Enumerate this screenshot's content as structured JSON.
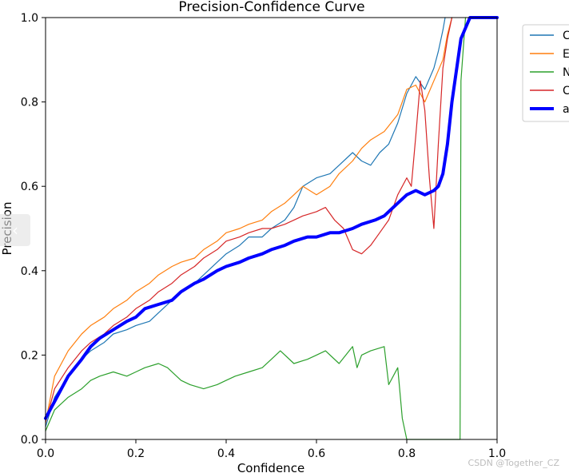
{
  "chart_data": {
    "type": "line",
    "title": "Precision-Confidence Curve",
    "xlabel": "Confidence",
    "ylabel": "Precision",
    "xlim": [
      0.0,
      1.0
    ],
    "ylim": [
      0.0,
      1.0
    ],
    "xticks": [
      "0.0",
      "0.2",
      "0.4",
      "0.6",
      "0.8",
      "1.0"
    ],
    "yticks": [
      "0.0",
      "0.2",
      "0.4",
      "0.6",
      "0.8",
      "1.0"
    ],
    "grid": false,
    "legend_position": "outside-top-right",
    "series": [
      {
        "name": "C",
        "color": "#1f77b4",
        "width": 1.2,
        "x": [
          0.0,
          0.02,
          0.05,
          0.08,
          0.1,
          0.13,
          0.15,
          0.18,
          0.2,
          0.23,
          0.25,
          0.28,
          0.3,
          0.33,
          0.35,
          0.38,
          0.4,
          0.43,
          0.45,
          0.48,
          0.5,
          0.53,
          0.55,
          0.57,
          0.6,
          0.63,
          0.65,
          0.68,
          0.7,
          0.72,
          0.74,
          0.76,
          0.78,
          0.8,
          0.82,
          0.84,
          0.86,
          0.87,
          0.88,
          0.885
        ],
        "y": [
          0.03,
          0.1,
          0.15,
          0.19,
          0.21,
          0.23,
          0.25,
          0.26,
          0.27,
          0.28,
          0.3,
          0.33,
          0.35,
          0.37,
          0.39,
          0.42,
          0.44,
          0.46,
          0.48,
          0.48,
          0.5,
          0.52,
          0.55,
          0.6,
          0.62,
          0.63,
          0.65,
          0.68,
          0.66,
          0.65,
          0.68,
          0.7,
          0.75,
          0.82,
          0.86,
          0.83,
          0.88,
          0.92,
          0.97,
          1.0
        ]
      },
      {
        "name": "E",
        "color": "#ff7f0e",
        "width": 1.2,
        "x": [
          0.0,
          0.02,
          0.05,
          0.08,
          0.1,
          0.13,
          0.15,
          0.18,
          0.2,
          0.23,
          0.25,
          0.28,
          0.3,
          0.33,
          0.35,
          0.38,
          0.4,
          0.43,
          0.45,
          0.48,
          0.5,
          0.53,
          0.55,
          0.57,
          0.6,
          0.63,
          0.65,
          0.68,
          0.7,
          0.72,
          0.75,
          0.78,
          0.8,
          0.82,
          0.84,
          0.86,
          0.88,
          0.89,
          0.9
        ],
        "y": [
          0.04,
          0.15,
          0.21,
          0.25,
          0.27,
          0.29,
          0.31,
          0.33,
          0.35,
          0.37,
          0.39,
          0.41,
          0.42,
          0.43,
          0.45,
          0.47,
          0.49,
          0.5,
          0.51,
          0.52,
          0.54,
          0.56,
          0.58,
          0.6,
          0.58,
          0.6,
          0.63,
          0.66,
          0.69,
          0.71,
          0.73,
          0.77,
          0.83,
          0.84,
          0.8,
          0.85,
          0.9,
          0.96,
          1.0
        ]
      },
      {
        "name": "N",
        "color": "#2ca02c",
        "width": 1.2,
        "x": [
          0.0,
          0.02,
          0.05,
          0.08,
          0.1,
          0.12,
          0.15,
          0.18,
          0.2,
          0.22,
          0.25,
          0.27,
          0.3,
          0.32,
          0.35,
          0.38,
          0.4,
          0.42,
          0.45,
          0.48,
          0.5,
          0.52,
          0.55,
          0.58,
          0.6,
          0.62,
          0.65,
          0.68,
          0.69,
          0.7,
          0.72,
          0.75,
          0.76,
          0.78,
          0.79,
          0.8,
          0.85,
          0.9,
          0.918,
          0.92,
          0.93
        ],
        "y": [
          0.02,
          0.07,
          0.1,
          0.12,
          0.14,
          0.15,
          0.16,
          0.15,
          0.16,
          0.17,
          0.18,
          0.17,
          0.14,
          0.13,
          0.12,
          0.13,
          0.14,
          0.15,
          0.16,
          0.17,
          0.19,
          0.21,
          0.18,
          0.19,
          0.2,
          0.21,
          0.18,
          0.22,
          0.17,
          0.2,
          0.21,
          0.22,
          0.13,
          0.17,
          0.05,
          0.0,
          0.0,
          0.0,
          0.0,
          0.85,
          1.0
        ]
      },
      {
        "name": "C",
        "color": "#d62728",
        "width": 1.2,
        "x": [
          0.0,
          0.02,
          0.05,
          0.08,
          0.1,
          0.13,
          0.15,
          0.18,
          0.2,
          0.23,
          0.25,
          0.28,
          0.3,
          0.33,
          0.35,
          0.38,
          0.4,
          0.43,
          0.45,
          0.48,
          0.5,
          0.53,
          0.55,
          0.57,
          0.6,
          0.62,
          0.64,
          0.66,
          0.68,
          0.7,
          0.72,
          0.74,
          0.76,
          0.78,
          0.8,
          0.81,
          0.82,
          0.83,
          0.84,
          0.85,
          0.86,
          0.87,
          0.88,
          0.89,
          0.9
        ],
        "y": [
          0.04,
          0.12,
          0.17,
          0.21,
          0.23,
          0.25,
          0.27,
          0.29,
          0.31,
          0.33,
          0.35,
          0.37,
          0.39,
          0.41,
          0.43,
          0.45,
          0.47,
          0.48,
          0.49,
          0.5,
          0.5,
          0.51,
          0.52,
          0.53,
          0.54,
          0.55,
          0.52,
          0.5,
          0.45,
          0.44,
          0.46,
          0.49,
          0.52,
          0.58,
          0.62,
          0.6,
          0.72,
          0.85,
          0.78,
          0.62,
          0.5,
          0.7,
          0.88,
          0.95,
          1.0
        ]
      },
      {
        "name": "a",
        "color": "#0000ff",
        "width": 4,
        "x": [
          0.0,
          0.02,
          0.05,
          0.08,
          0.1,
          0.12,
          0.15,
          0.18,
          0.2,
          0.22,
          0.25,
          0.28,
          0.3,
          0.33,
          0.35,
          0.38,
          0.4,
          0.43,
          0.45,
          0.48,
          0.5,
          0.53,
          0.55,
          0.58,
          0.6,
          0.63,
          0.65,
          0.68,
          0.7,
          0.73,
          0.75,
          0.78,
          0.8,
          0.82,
          0.84,
          0.86,
          0.87,
          0.88,
          0.89,
          0.9,
          0.92,
          0.94,
          0.96,
          1.0
        ],
        "y": [
          0.05,
          0.09,
          0.15,
          0.19,
          0.22,
          0.24,
          0.26,
          0.28,
          0.29,
          0.31,
          0.32,
          0.33,
          0.35,
          0.37,
          0.38,
          0.4,
          0.41,
          0.42,
          0.43,
          0.44,
          0.45,
          0.46,
          0.47,
          0.48,
          0.48,
          0.49,
          0.49,
          0.5,
          0.51,
          0.52,
          0.53,
          0.56,
          0.58,
          0.59,
          0.58,
          0.59,
          0.6,
          0.63,
          0.7,
          0.8,
          0.95,
          1.0,
          1.0,
          1.0
        ]
      }
    ]
  },
  "legend": {
    "entries": [
      "C",
      "E",
      "N",
      "C",
      "a"
    ]
  },
  "watermark": "CSDN @Together_CZ"
}
